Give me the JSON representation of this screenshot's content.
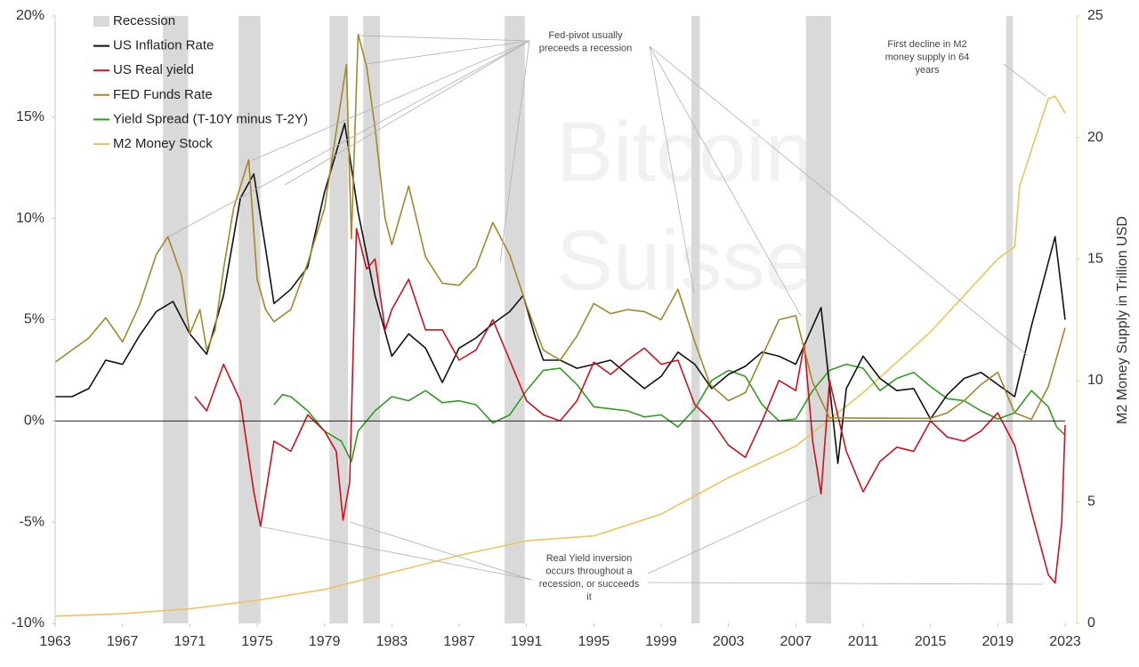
{
  "chart_data": {
    "type": "line",
    "watermark": [
      "Bitcoin",
      "Suisse"
    ],
    "y2_label": "M2 Money Supply in Trillion USD",
    "xlim": [
      1963,
      2023
    ],
    "xticks": [
      1963,
      1967,
      1971,
      1975,
      1979,
      1983,
      1987,
      1991,
      1995,
      1999,
      2003,
      2007,
      2011,
      2015,
      2019,
      2023
    ],
    "ylim": [
      -10,
      20
    ],
    "yticks": [
      {
        "value": -10,
        "label": "-10%"
      },
      {
        "value": -5,
        "label": "-5%"
      },
      {
        "value": 0,
        "label": "0%"
      },
      {
        "value": 5,
        "label": "5%"
      },
      {
        "value": 10,
        "label": "10%"
      },
      {
        "value": 15,
        "label": "15%"
      },
      {
        "value": 20,
        "label": "20%"
      }
    ],
    "y2lim": [
      0,
      25
    ],
    "y2ticks": [
      0,
      5,
      10,
      15,
      20,
      25
    ],
    "grid": false,
    "legend": "top-left",
    "recessions": {
      "name": "Recession",
      "color": "#d9d9d9",
      "periods": [
        [
          1969.4,
          1970.9
        ],
        [
          1973.9,
          1975.2
        ],
        [
          1979.3,
          1980.4
        ],
        [
          1981.3,
          1982.3
        ],
        [
          1989.7,
          1990.9
        ],
        [
          2000.8,
          2001.3
        ],
        [
          2007.6,
          2009.1
        ],
        [
          2019.5,
          2019.9
        ]
      ]
    },
    "series": [
      {
        "name": "US Inflation Rate",
        "color": "#111111",
        "x": [
          1963,
          1964,
          1965,
          1966,
          1967,
          1968,
          1969,
          1970,
          1971,
          1972,
          1973,
          1974,
          1974.8,
          1975.5,
          1976,
          1977,
          1978,
          1979,
          1980.2,
          1981,
          1982,
          1983,
          1984,
          1985,
          1986,
          1987,
          1988,
          1989,
          1990,
          1990.8,
          1991.5,
          1992,
          1993,
          1994,
          1995,
          1996,
          1997,
          1998,
          1999,
          2000,
          2001,
          2002,
          2003,
          2004,
          2005,
          2006,
          2007,
          2008.5,
          2009.5,
          2010,
          2011,
          2012,
          2013,
          2014,
          2015,
          2016,
          2017,
          2018,
          2019,
          2020,
          2021,
          2022.4,
          2023
        ],
        "values": [
          1.2,
          1.2,
          1.6,
          3.0,
          2.8,
          4.2,
          5.4,
          5.9,
          4.3,
          3.3,
          6.2,
          11.0,
          12.2,
          8.5,
          5.8,
          6.5,
          7.6,
          11.3,
          14.7,
          10.3,
          6.2,
          3.2,
          4.3,
          3.6,
          1.9,
          3.6,
          4.1,
          4.8,
          5.4,
          6.2,
          4.2,
          3.0,
          3.0,
          2.6,
          2.8,
          3.0,
          2.3,
          1.6,
          2.2,
          3.4,
          2.8,
          1.6,
          2.3,
          2.7,
          3.4,
          3.2,
          2.8,
          5.6,
          -2.1,
          1.6,
          3.2,
          2.1,
          1.5,
          1.6,
          0.1,
          1.3,
          2.1,
          2.4,
          1.8,
          1.2,
          4.7,
          9.1,
          5.0
        ]
      },
      {
        "name": "US Real yield",
        "color": "#d0111b",
        "x": [
          1971.3,
          1972,
          1973,
          1974,
          1974.8,
          1975.2,
          1976,
          1977,
          1978,
          1979,
          1979.7,
          1980.1,
          1980.5,
          1980.9,
          1981.5,
          1982,
          1982.6,
          1983,
          1984,
          1985,
          1986,
          1987,
          1988,
          1989,
          1990,
          1991,
          1992,
          1993,
          1994,
          1995,
          1996,
          1997,
          1998,
          1999,
          2000,
          2001,
          2002,
          2003,
          2004,
          2005,
          2006,
          2007,
          2007.5,
          2008,
          2008.5,
          2009,
          2010,
          2011,
          2012,
          2013,
          2014,
          2015,
          2016,
          2017,
          2018,
          2019,
          2020,
          2021,
          2022,
          2022.4,
          2022.8,
          2023
        ],
        "values": [
          1.2,
          0.5,
          2.8,
          1.0,
          -3.5,
          -5.2,
          -1.0,
          -1.5,
          0.3,
          -0.5,
          -1.5,
          -4.9,
          -3.0,
          9.5,
          7.5,
          8.0,
          4.5,
          5.5,
          7.0,
          4.5,
          4.5,
          3.0,
          3.5,
          5.0,
          3.0,
          1.0,
          0.3,
          0.0,
          1.0,
          2.9,
          2.3,
          3.0,
          3.6,
          2.8,
          3.0,
          0.8,
          0.0,
          -1.2,
          -1.8,
          0.0,
          2.0,
          1.5,
          3.8,
          -1.0,
          -3.6,
          2.0,
          -1.5,
          -3.5,
          -2.0,
          -1.3,
          -1.5,
          0.0,
          -0.8,
          -1.0,
          -0.5,
          0.4,
          -1.2,
          -4.5,
          -7.6,
          -8.0,
          -5.0,
          -0.2
        ]
      },
      {
        "name": "FED Funds Rate",
        "color": "#a6862a",
        "x": [
          1963,
          1964,
          1965,
          1966,
          1967,
          1968,
          1969,
          1969.7,
          1970.5,
          1971,
          1971.6,
          1972,
          1972.5,
          1973,
          1973.6,
          1974.5,
          1975,
          1975.5,
          1976,
          1977,
          1978,
          1979,
          1980.3,
          1980.6,
          1981,
          1981.5,
          1982,
          1982.6,
          1983,
          1984,
          1985,
          1986,
          1987,
          1988,
          1989,
          1990,
          1991,
          1992,
          1993,
          1994,
          1995,
          1996,
          1997,
          1998,
          1999,
          2000,
          2001,
          2001.9,
          2003,
          2004,
          2005,
          2006,
          2007,
          2008,
          2009,
          2015,
          2016,
          2017,
          2018,
          2019,
          2020,
          2021,
          2022,
          2023
        ],
        "values": [
          2.9,
          3.5,
          4.1,
          5.1,
          3.9,
          5.7,
          8.2,
          9.1,
          7.2,
          4.3,
          5.5,
          3.5,
          4.5,
          7.5,
          10.5,
          12.9,
          7.0,
          5.5,
          4.9,
          5.5,
          7.8,
          10.5,
          17.6,
          9.0,
          19.1,
          17.5,
          14.5,
          10.0,
          8.7,
          11.6,
          8.1,
          6.8,
          6.7,
          7.6,
          9.8,
          8.2,
          5.7,
          3.5,
          3.0,
          4.2,
          5.8,
          5.3,
          5.5,
          5.4,
          5.0,
          6.5,
          3.9,
          1.8,
          1.0,
          1.4,
          3.2,
          5.0,
          5.2,
          1.9,
          0.15,
          0.13,
          0.4,
          1.0,
          1.8,
          2.4,
          0.4,
          0.08,
          1.7,
          4.6
        ]
      },
      {
        "name": "Yield Spread (T-10Y minus T-2Y)",
        "color": "#2e9e1e",
        "x": [
          1976,
          1976.5,
          1977,
          1978,
          1979,
          1980,
          1980.6,
          1981,
          1982,
          1983,
          1984,
          1985,
          1986,
          1987,
          1988,
          1989,
          1990,
          1991,
          1992,
          1993,
          1994,
          1995,
          1996,
          1997,
          1998,
          1999,
          2000,
          2001,
          2002,
          2003,
          2004,
          2005,
          2006,
          2007,
          2008,
          2009,
          2010,
          2011,
          2012,
          2013,
          2014,
          2015,
          2016,
          2017,
          2018,
          2019,
          2020,
          2021,
          2022,
          2022.5,
          2023
        ],
        "values": [
          0.8,
          1.3,
          1.2,
          0.5,
          -0.5,
          -1.0,
          -2.0,
          -0.5,
          0.5,
          1.2,
          1.0,
          1.5,
          0.9,
          1.0,
          0.8,
          -0.1,
          0.3,
          1.5,
          2.5,
          2.6,
          1.8,
          0.7,
          0.6,
          0.5,
          0.2,
          0.3,
          -0.3,
          0.6,
          2.0,
          2.5,
          2.2,
          0.8,
          0.0,
          0.1,
          1.5,
          2.5,
          2.8,
          2.6,
          1.5,
          2.1,
          2.4,
          1.7,
          1.1,
          1.0,
          0.5,
          0.1,
          0.4,
          1.5,
          0.7,
          -0.3,
          -0.7
        ]
      },
      {
        "name": "M2 Money Stock",
        "color": "#f0c35a",
        "axis": "y2",
        "x": [
          1963,
          1967,
          1971,
          1975,
          1979,
          1983,
          1987,
          1991,
          1995,
          1999,
          2003,
          2007,
          2011,
          2015,
          2019,
          2020,
          2020.3,
          2021,
          2022,
          2022.4,
          2023
        ],
        "values": [
          0.3,
          0.4,
          0.6,
          0.95,
          1.4,
          2.1,
          2.8,
          3.4,
          3.6,
          4.5,
          6.0,
          7.3,
          9.5,
          12.0,
          15.0,
          15.5,
          18.0,
          19.5,
          21.6,
          21.7,
          21.0
        ]
      }
    ],
    "annotations": [
      {
        "lines": [
          "Fed-pivot usually",
          "preceeds a recession"
        ]
      },
      {
        "lines": [
          "First decline in M2",
          "money supply in 64",
          "years"
        ]
      },
      {
        "lines": [
          "Real Yield inversion",
          "occurs throughout a",
          "recession, or succeeds",
          "it"
        ]
      }
    ]
  }
}
